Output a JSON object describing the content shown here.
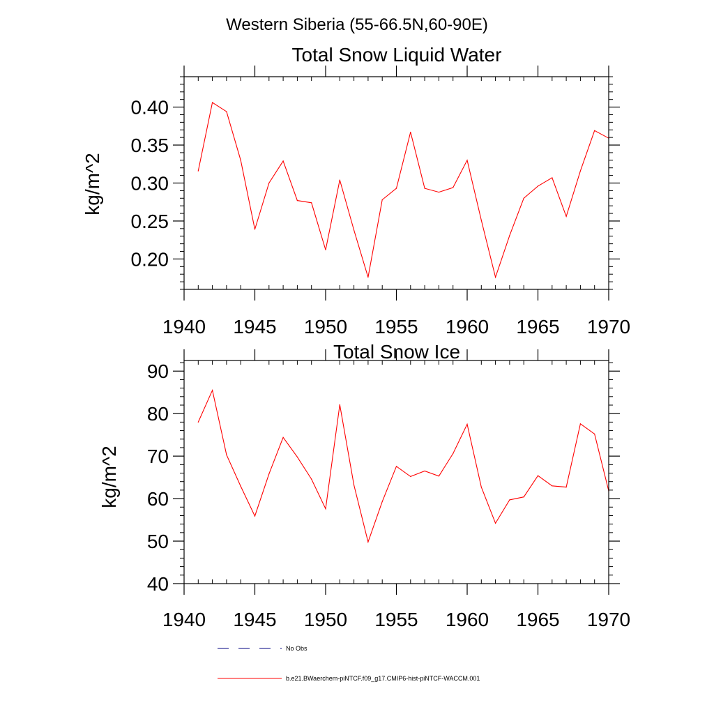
{
  "figure": {
    "title": "Western Siberia (55-66.5N,60-90E)"
  },
  "chart_data": [
    {
      "type": "line",
      "title": "Total Snow Liquid Water",
      "xlabel": "",
      "ylabel": "kg/m^2",
      "xlim": [
        1940,
        1970
      ],
      "ylim": [
        0.16,
        0.44
      ],
      "xticks": [
        1940,
        1945,
        1950,
        1955,
        1960,
        1965,
        1970
      ],
      "xtick_labels": [
        "1940",
        "1945",
        "1950",
        "1955",
        "1960",
        "1965",
        "1970"
      ],
      "yticks": [
        0.2,
        0.25,
        0.3,
        0.35,
        0.4
      ],
      "ytick_labels": [
        "0.20",
        "0.25",
        "0.30",
        "0.35",
        "0.40"
      ],
      "y_minor_step": 0.01,
      "x_minor_step": 1,
      "grid": false,
      "series": [
        {
          "name": "b.e21.BWaerchem-piNTCF.f09_g17.CMIP6-hist-piNTCF-WACCM.001",
          "color": "#ff0000",
          "x": [
            1941,
            1942,
            1943,
            1944,
            1945,
            1946,
            1947,
            1948,
            1949,
            1950,
            1951,
            1952,
            1953,
            1954,
            1955,
            1956,
            1957,
            1958,
            1959,
            1960,
            1961,
            1962,
            1963,
            1964,
            1965,
            1966,
            1967,
            1968,
            1969,
            1970
          ],
          "values": [
            0.316,
            0.406,
            0.394,
            0.33,
            0.239,
            0.3,
            0.329,
            0.277,
            0.274,
            0.212,
            0.304,
            0.238,
            0.176,
            0.278,
            0.293,
            0.367,
            0.293,
            0.288,
            0.294,
            0.33,
            0.251,
            0.176,
            0.231,
            0.28,
            0.296,
            0.307,
            0.256,
            0.316,
            0.369,
            0.359
          ]
        }
      ]
    },
    {
      "type": "line",
      "title": "Total Snow Ice",
      "xlabel": "",
      "ylabel": "kg/m^2",
      "xlim": [
        1940,
        1970
      ],
      "ylim": [
        40,
        92.5
      ],
      "xticks": [
        1940,
        1945,
        1950,
        1955,
        1960,
        1965,
        1970
      ],
      "xtick_labels": [
        "1940",
        "1945",
        "1950",
        "1955",
        "1960",
        "1965",
        "1970"
      ],
      "yticks": [
        40,
        50,
        60,
        70,
        80,
        90
      ],
      "ytick_labels": [
        "40",
        "50",
        "60",
        "70",
        "80",
        "90"
      ],
      "y_minor_step": 2,
      "x_minor_step": 1,
      "grid": false,
      "series": [
        {
          "name": "b.e21.BWaerchem-piNTCF.f09_g17.CMIP6-hist-piNTCF-WACCM.001",
          "color": "#ff0000",
          "x": [
            1941,
            1942,
            1943,
            1944,
            1945,
            1946,
            1947,
            1948,
            1949,
            1950,
            1951,
            1952,
            1953,
            1954,
            1955,
            1956,
            1957,
            1958,
            1959,
            1960,
            1961,
            1962,
            1963,
            1964,
            1965,
            1966,
            1967,
            1968,
            1969,
            1970
          ],
          "values": [
            78.0,
            85.5,
            70.3,
            62.9,
            55.9,
            65.8,
            74.4,
            69.8,
            64.6,
            57.6,
            82.1,
            63.2,
            49.8,
            59.3,
            67.6,
            65.2,
            66.5,
            65.3,
            70.6,
            77.5,
            62.7,
            54.2,
            59.7,
            60.4,
            65.4,
            63.0,
            62.7,
            77.6,
            75.2,
            61.8
          ]
        }
      ]
    }
  ],
  "legend": {
    "placement": "bottom",
    "items": [
      {
        "label": "No Obs",
        "color": "#000080",
        "style": "dashed"
      },
      {
        "label": "b.e21.BWaerchem-piNTCF.f09_g17.CMIP6-hist-piNTCF-WACCM.001",
        "color": "#ff0000",
        "style": "solid"
      }
    ]
  }
}
